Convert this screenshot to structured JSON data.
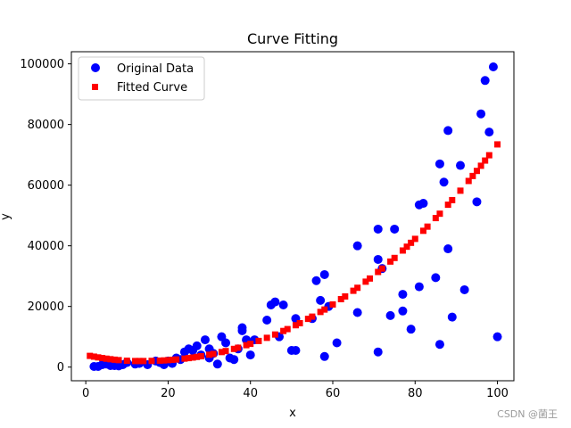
{
  "chart_data": {
    "type": "scatter",
    "title": "Curve Fitting",
    "xlabel": "x",
    "ylabel": "y",
    "xlim": [
      -3.5,
      104
    ],
    "ylim": [
      -4500,
      104000
    ],
    "xticks": [
      0,
      20,
      40,
      60,
      80,
      100
    ],
    "yticks": [
      0,
      20000,
      40000,
      60000,
      80000,
      100000
    ],
    "legend_placement": "upper-left",
    "grid": false,
    "series": [
      {
        "name": "Original Data",
        "marker": "circle",
        "color": "#0000ff",
        "x": [
          2,
          3,
          4,
          5,
          6,
          7,
          8,
          9,
          10,
          12,
          13,
          15,
          17,
          18,
          19,
          20,
          21,
          22,
          23,
          24,
          25,
          26,
          27,
          28,
          29,
          30,
          30,
          31,
          32,
          33,
          34,
          35,
          36,
          37,
          38,
          38,
          39,
          40,
          41,
          44,
          45,
          46,
          47,
          48,
          50,
          51,
          51,
          55,
          56,
          57,
          58,
          58,
          59,
          61,
          66,
          66,
          71,
          71,
          71,
          72,
          74,
          75,
          77,
          77,
          79,
          81,
          81,
          82,
          85,
          86,
          86,
          87,
          88,
          88,
          89,
          91,
          92,
          95,
          96,
          97,
          98,
          99,
          100
        ],
        "y": [
          200,
          200,
          800,
          1000,
          500,
          500,
          400,
          800,
          1500,
          1000,
          1200,
          800,
          2000,
          1500,
          800,
          2000,
          1200,
          3000,
          2500,
          5000,
          6000,
          5500,
          7000,
          4000,
          9000,
          3000,
          6000,
          4500,
          1000,
          10000,
          8000,
          3000,
          2500,
          6000,
          13000,
          12000,
          9000,
          4000,
          9000,
          15500,
          20500,
          21500,
          10000,
          20500,
          5500,
          5500,
          16000,
          16000,
          28500,
          22000,
          30500,
          3500,
          20000,
          8000,
          40000,
          18000,
          45500,
          35500,
          5000,
          32500,
          17000,
          45500,
          18500,
          24000,
          12500,
          26500,
          53500,
          54000,
          29500,
          67000,
          7500,
          61000,
          39000,
          78000,
          16500,
          66500,
          25500,
          54500,
          83500,
          94500,
          77500,
          99000,
          10000
        ]
      },
      {
        "name": "Fitted Curve",
        "marker": "square",
        "color": "#ff0000",
        "x": [
          1,
          2,
          3,
          4,
          5,
          6,
          7,
          8,
          10,
          12,
          13,
          14,
          16,
          18,
          19,
          20,
          21,
          22,
          24,
          25,
          26,
          27,
          28,
          30,
          31,
          33,
          34,
          36,
          37,
          39,
          40,
          42,
          44,
          46,
          48,
          49,
          51,
          52,
          54,
          55,
          57,
          58,
          60,
          62,
          63,
          65,
          66,
          68,
          69,
          71,
          72,
          74,
          75,
          77,
          78,
          79,
          80,
          82,
          83,
          85,
          86,
          88,
          89,
          91,
          93,
          94,
          95,
          96,
          97,
          98,
          100
        ],
        "y": [
          3700,
          3450,
          3200,
          2980,
          2780,
          2600,
          2440,
          2300,
          2100,
          2000,
          2000,
          2000,
          2050,
          2130,
          2200,
          2300,
          2400,
          2520,
          2800,
          2970,
          3150,
          3360,
          3580,
          4080,
          4350,
          4960,
          5290,
          6000,
          6390,
          7230,
          7670,
          8620,
          9650,
          10740,
          11910,
          12530,
          13810,
          14480,
          15900,
          16640,
          18180,
          18980,
          20650,
          22400,
          23300,
          25170,
          26150,
          28170,
          29210,
          31370,
          32490,
          34800,
          35990,
          38440,
          39700,
          40980,
          42280,
          44950,
          46320,
          49140,
          50580,
          53540,
          55060,
          58170,
          61380,
          63020,
          64690,
          66390,
          68110,
          69860,
          73440
        ]
      }
    ]
  },
  "watermark": "CSDN @菌王"
}
